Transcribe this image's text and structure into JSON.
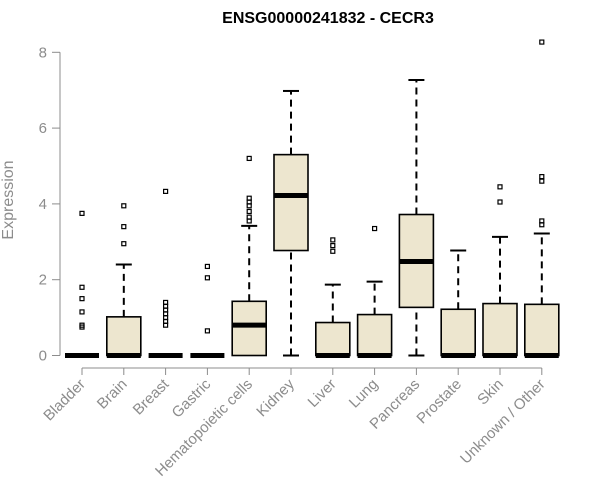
{
  "chart_data": {
    "type": "boxplot",
    "title": "ENSG00000241832 - CECR3",
    "xlabel": "",
    "ylabel": "Expression",
    "ylim": [
      0,
      8.4
    ],
    "yticks": [
      0,
      2,
      4,
      6,
      8
    ],
    "grid": false,
    "legend": "none",
    "colors": {
      "box_fill": "#ede6cf",
      "stroke": "#000000",
      "axis": "#8c8c8c"
    },
    "categories": [
      "Bladder",
      "Brain",
      "Breast",
      "Gastric",
      "Hematopoietic cells",
      "Kidney",
      "Liver",
      "Lung",
      "Pancreas",
      "Prostate",
      "Skin",
      "Unknown / Other"
    ],
    "boxes": [
      {
        "name": "Bladder",
        "min": 0,
        "q1": 0,
        "median": 0,
        "q3": 0,
        "max": 0,
        "outliers": [
          0.75,
          0.8,
          1.15,
          1.5,
          1.8,
          3.75
        ]
      },
      {
        "name": "Brain",
        "min": 0,
        "q1": 0,
        "median": 0,
        "q3": 1.02,
        "max": 2.4,
        "outliers": [
          2.95,
          3.4,
          3.95
        ]
      },
      {
        "name": "Breast",
        "min": 0,
        "q1": 0,
        "median": 0,
        "q3": 0,
        "max": 0,
        "outliers": [
          0.8,
          0.9,
          1.0,
          1.1,
          1.2,
          1.3,
          1.4,
          4.33
        ]
      },
      {
        "name": "Gastric",
        "min": 0,
        "q1": 0,
        "median": 0,
        "q3": 0,
        "max": 0,
        "outliers": [
          0.65,
          2.05,
          2.35
        ]
      },
      {
        "name": "Hematopoietic cells",
        "min": 0,
        "q1": 0,
        "median": 0.8,
        "q3": 1.43,
        "max": 3.42,
        "outliers": [
          3.55,
          3.65,
          3.8,
          3.95,
          4.05,
          4.15,
          5.2
        ]
      },
      {
        "name": "Kidney",
        "min": 0,
        "q1": 2.77,
        "median": 4.22,
        "q3": 5.3,
        "max": 6.98,
        "outliers": []
      },
      {
        "name": "Liver",
        "min": 0,
        "q1": 0,
        "median": 0,
        "q3": 0.87,
        "max": 1.87,
        "outliers": [
          2.75,
          2.9,
          3.05
        ]
      },
      {
        "name": "Lung",
        "min": 0,
        "q1": 0,
        "median": 0,
        "q3": 1.08,
        "max": 1.95,
        "outliers": [
          3.35
        ]
      },
      {
        "name": "Pancreas",
        "min": 0,
        "q1": 1.27,
        "median": 2.48,
        "q3": 3.72,
        "max": 7.27,
        "outliers": []
      },
      {
        "name": "Prostate",
        "min": 0,
        "q1": 0,
        "median": 0,
        "q3": 1.22,
        "max": 2.77,
        "outliers": []
      },
      {
        "name": "Skin",
        "min": 0,
        "q1": 0,
        "median": 0,
        "q3": 1.37,
        "max": 3.13,
        "outliers": [
          4.05,
          4.45
        ]
      },
      {
        "name": "Unknown / Other",
        "min": 0,
        "q1": 0,
        "median": 0,
        "q3": 1.35,
        "max": 3.22,
        "outliers": [
          3.45,
          3.55,
          4.6,
          4.72,
          8.27
        ]
      }
    ]
  }
}
